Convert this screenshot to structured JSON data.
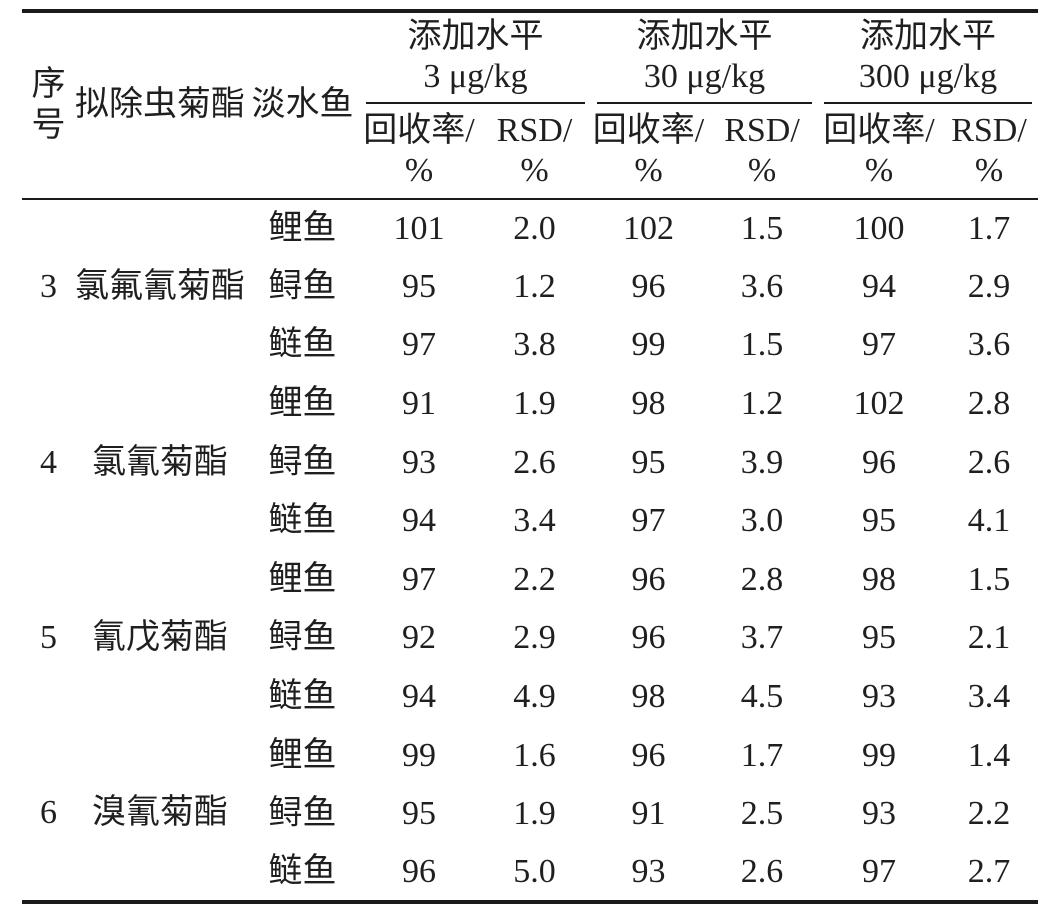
{
  "table": {
    "header": {
      "serial": "序\n号",
      "pesticide": "拟除虫菊酯",
      "fish": "淡水鱼",
      "levels": [
        "添加水平\n3 μg/kg",
        "添加水平\n30 μg/kg",
        "添加水平\n300 μg/kg"
      ],
      "recovery_label": "回收率/\n%",
      "rsd_label": "RSD/\n%"
    },
    "groups": [
      {
        "no": "3",
        "pesticide": "氯氟氰菊酯",
        "rows": [
          {
            "fish": "鲤鱼",
            "values": [
              "101",
              "2.0",
              "102",
              "1.5",
              "100",
              "1.7"
            ]
          },
          {
            "fish": "鲟鱼",
            "values": [
              "95",
              "1.2",
              "96",
              "3.6",
              "94",
              "2.9"
            ]
          },
          {
            "fish": "鲢鱼",
            "values": [
              "97",
              "3.8",
              "99",
              "1.5",
              "97",
              "3.6"
            ]
          }
        ]
      },
      {
        "no": "4",
        "pesticide": "氯氰菊酯",
        "rows": [
          {
            "fish": "鲤鱼",
            "values": [
              "91",
              "1.9",
              "98",
              "1.2",
              "102",
              "2.8"
            ]
          },
          {
            "fish": "鲟鱼",
            "values": [
              "93",
              "2.6",
              "95",
              "3.9",
              "96",
              "2.6"
            ]
          },
          {
            "fish": "鲢鱼",
            "values": [
              "94",
              "3.4",
              "97",
              "3.0",
              "95",
              "4.1"
            ]
          }
        ]
      },
      {
        "no": "5",
        "pesticide": "氰戊菊酯",
        "rows": [
          {
            "fish": "鲤鱼",
            "values": [
              "97",
              "2.2",
              "96",
              "2.8",
              "98",
              "1.5"
            ]
          },
          {
            "fish": "鲟鱼",
            "values": [
              "92",
              "2.9",
              "96",
              "3.7",
              "95",
              "2.1"
            ]
          },
          {
            "fish": "鲢鱼",
            "values": [
              "94",
              "4.9",
              "98",
              "4.5",
              "93",
              "3.4"
            ]
          }
        ]
      },
      {
        "no": "6",
        "pesticide": "溴氰菊酯",
        "rows": [
          {
            "fish": "鲤鱼",
            "values": [
              "99",
              "1.6",
              "96",
              "1.7",
              "99",
              "1.4"
            ]
          },
          {
            "fish": "鲟鱼",
            "values": [
              "95",
              "1.9",
              "91",
              "2.5",
              "93",
              "2.2"
            ]
          },
          {
            "fish": "鲢鱼",
            "values": [
              "96",
              "5.0",
              "93",
              "2.6",
              "97",
              "2.7"
            ]
          }
        ]
      }
    ],
    "colors": {
      "text": "#1f1f1f",
      "rule": "#1a1a1a",
      "background": "#ffffff"
    }
  }
}
